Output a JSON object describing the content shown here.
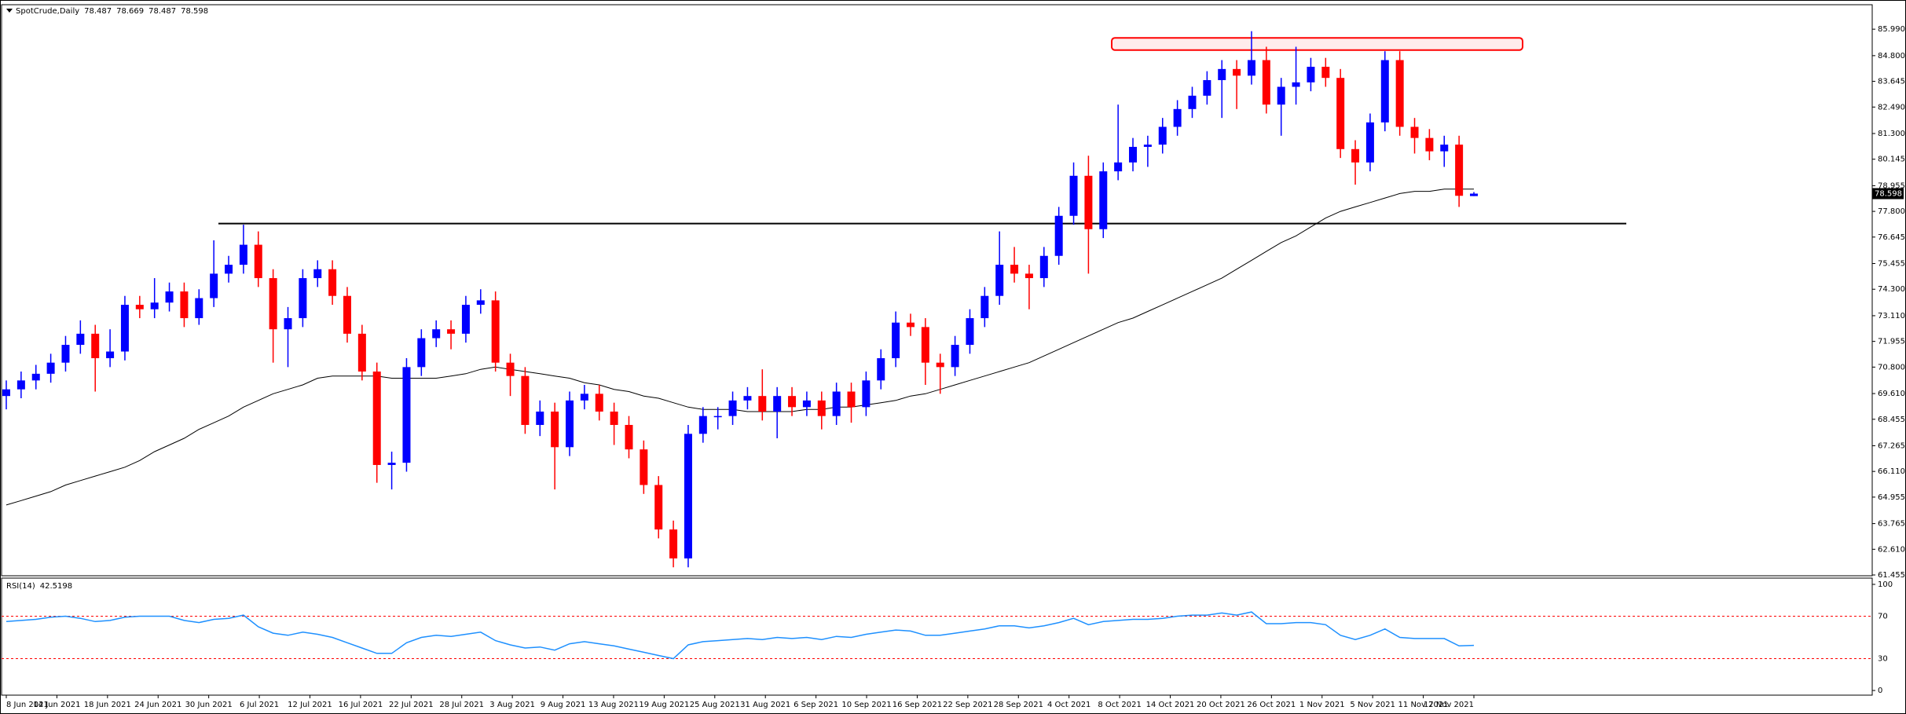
{
  "chart_data": {
    "type": "candlestick",
    "title": "SpotCrude,Daily",
    "date_labels": [
      "8 Jun 2021",
      "14 Jun 2021",
      "18 Jun 2021",
      "24 Jun 2021",
      "30 Jun 2021",
      "6 Jul 2021",
      "12 Jul 2021",
      "16 Jul 2021",
      "22 Jul 2021",
      "28 Jul 2021",
      "3 Aug 2021",
      "9 Aug 2021",
      "13 Aug 2021",
      "19 Aug 2021",
      "25 Aug 2021",
      "31 Aug 2021",
      "6 Sep 2021",
      "10 Sep 2021",
      "16 Sep 2021",
      "22 Sep 2021",
      "28 Sep 2021",
      "4 Oct 2021",
      "8 Oct 2021",
      "14 Oct 2021",
      "20 Oct 2021",
      "26 Oct 2021",
      "1 Nov 2021",
      "5 Nov 2021",
      "11 Nov 2021",
      "17 Nov 2021"
    ],
    "open": [
      69.5,
      69.8,
      70.2,
      70.5,
      71.0,
      71.8,
      72.3,
      71.2,
      71.5,
      73.6,
      73.4,
      73.7,
      74.2,
      73.0,
      73.9,
      75.0,
      75.4,
      76.3,
      74.8,
      72.5,
      73.0,
      74.8,
      75.2,
      74.0,
      72.3,
      70.6,
      66.4,
      66.5,
      70.8,
      72.1,
      72.5,
      72.3,
      73.6,
      73.8,
      71.0,
      70.4,
      68.2,
      68.8,
      67.2,
      69.3,
      69.6,
      68.8,
      68.2,
      67.1,
      65.5,
      63.5,
      62.2,
      67.8,
      68.6,
      68.6,
      69.3,
      69.5,
      68.8,
      69.5,
      69.0,
      69.3,
      68.6,
      69.7,
      69.0,
      70.2,
      71.2,
      72.8,
      72.6,
      71.0,
      70.8,
      71.8,
      73.0,
      74.0,
      75.4,
      75.0,
      74.8,
      75.8,
      77.6,
      79.4,
      77.0,
      79.6,
      80.0,
      80.7,
      80.8,
      81.6,
      82.4,
      83.0,
      83.7,
      84.2,
      83.9,
      84.6,
      82.6,
      83.4,
      83.6,
      84.3,
      83.8,
      80.6,
      80.0,
      81.8,
      84.6,
      81.6,
      81.1,
      80.5,
      80.8,
      78.487
    ],
    "high": [
      70.2,
      70.6,
      70.9,
      71.4,
      72.2,
      72.9,
      72.7,
      72.5,
      74.0,
      74.0,
      74.8,
      74.6,
      74.6,
      74.3,
      76.5,
      75.8,
      77.2,
      76.9,
      75.2,
      73.5,
      75.2,
      75.6,
      75.6,
      74.4,
      72.7,
      71.0,
      67.0,
      71.2,
      72.5,
      72.9,
      72.9,
      74.0,
      74.3,
      74.2,
      71.4,
      70.8,
      69.3,
      69.2,
      69.7,
      70.0,
      70.0,
      69.2,
      68.6,
      67.5,
      65.9,
      63.9,
      68.2,
      69.0,
      69.0,
      69.7,
      69.9,
      70.7,
      69.9,
      69.9,
      69.7,
      69.7,
      70.1,
      70.1,
      70.6,
      71.6,
      73.3,
      73.2,
      73.0,
      71.4,
      72.2,
      73.4,
      74.4,
      76.9,
      76.2,
      75.4,
      76.2,
      78.0,
      80.0,
      80.3,
      80.0,
      82.6,
      81.1,
      81.2,
      82.0,
      82.8,
      83.4,
      84.1,
      84.6,
      84.6,
      85.9,
      85.2,
      83.8,
      85.2,
      84.7,
      84.7,
      84.2,
      81.0,
      82.2,
      85.0,
      85.0,
      82.0,
      81.5,
      81.2,
      81.2,
      78.669
    ],
    "low": [
      68.9,
      69.4,
      69.8,
      70.1,
      70.6,
      71.4,
      69.7,
      70.8,
      71.1,
      73.0,
      73.0,
      73.3,
      72.6,
      72.7,
      73.5,
      74.6,
      75.0,
      74.4,
      71.0,
      70.8,
      72.6,
      74.4,
      73.6,
      71.9,
      70.2,
      65.6,
      65.3,
      66.1,
      70.4,
      71.7,
      71.6,
      71.9,
      73.2,
      70.6,
      69.5,
      67.8,
      67.7,
      65.3,
      66.8,
      68.9,
      68.4,
      67.3,
      66.7,
      65.1,
      63.1,
      61.8,
      61.8,
      67.4,
      68.0,
      68.2,
      68.9,
      68.4,
      67.6,
      68.6,
      68.6,
      68.0,
      68.2,
      68.3,
      68.6,
      69.8,
      70.8,
      72.2,
      70.0,
      69.6,
      70.4,
      71.4,
      72.6,
      73.6,
      74.6,
      73.4,
      74.4,
      75.4,
      77.2,
      75.0,
      76.6,
      79.2,
      79.6,
      79.8,
      80.4,
      81.2,
      82.0,
      82.6,
      82.0,
      82.4,
      83.5,
      82.2,
      81.2,
      82.6,
      83.2,
      83.4,
      80.2,
      79.0,
      79.6,
      81.4,
      81.2,
      80.4,
      80.1,
      79.8,
      78.0,
      78.487
    ],
    "close": [
      69.8,
      70.2,
      70.5,
      71.0,
      71.8,
      72.3,
      71.2,
      71.5,
      73.6,
      73.4,
      73.7,
      74.2,
      73.0,
      73.9,
      75.0,
      75.4,
      76.3,
      74.8,
      72.5,
      73.0,
      74.8,
      75.2,
      74.0,
      72.3,
      70.6,
      66.4,
      66.5,
      70.8,
      72.1,
      72.5,
      72.3,
      73.6,
      73.8,
      71.0,
      70.4,
      68.2,
      68.8,
      67.2,
      69.3,
      69.6,
      68.8,
      68.2,
      67.1,
      65.5,
      63.5,
      62.2,
      67.8,
      68.6,
      68.6,
      69.3,
      69.5,
      68.8,
      69.5,
      69.0,
      69.3,
      68.6,
      69.7,
      69.0,
      70.2,
      71.2,
      72.8,
      72.6,
      71.0,
      70.8,
      71.8,
      73.0,
      74.0,
      75.4,
      75.0,
      74.8,
      75.8,
      77.6,
      79.4,
      77.0,
      79.6,
      80.0,
      80.7,
      80.8,
      81.6,
      82.4,
      83.0,
      83.7,
      84.2,
      83.9,
      84.6,
      82.6,
      83.4,
      83.6,
      84.3,
      83.8,
      80.6,
      80.0,
      81.8,
      84.6,
      81.6,
      81.1,
      80.5,
      80.8,
      78.5,
      78.598
    ],
    "up_color": "#0000ff",
    "down_color": "#ff0000",
    "ma": {
      "color": "#000000",
      "values": [
        64.6,
        64.8,
        65.0,
        65.2,
        65.5,
        65.7,
        65.9,
        66.1,
        66.3,
        66.6,
        67.0,
        67.3,
        67.6,
        68.0,
        68.3,
        68.6,
        69.0,
        69.3,
        69.6,
        69.8,
        70.0,
        70.3,
        70.4,
        70.4,
        70.4,
        70.4,
        70.3,
        70.3,
        70.3,
        70.3,
        70.4,
        70.5,
        70.7,
        70.8,
        70.7,
        70.6,
        70.5,
        70.4,
        70.3,
        70.1,
        70.0,
        69.8,
        69.7,
        69.5,
        69.4,
        69.2,
        69.0,
        68.9,
        68.9,
        68.9,
        68.8,
        68.8,
        68.8,
        68.8,
        68.9,
        68.9,
        69.0,
        69.0,
        69.1,
        69.2,
        69.3,
        69.5,
        69.6,
        69.8,
        70.0,
        70.2,
        70.4,
        70.6,
        70.8,
        71.0,
        71.3,
        71.6,
        71.9,
        72.2,
        72.5,
        72.8,
        73.0,
        73.3,
        73.6,
        73.9,
        74.2,
        74.5,
        74.8,
        75.2,
        75.6,
        76.0,
        76.4,
        76.7,
        77.1,
        77.5,
        77.8,
        78.0,
        78.2,
        78.4,
        78.6,
        78.7,
        78.7,
        78.8,
        78.8,
        78.8
      ]
    },
    "ylim": [
      61.42,
      87.09
    ],
    "yticks": [
      {
        "value": 85.99,
        "label": "85.990"
      },
      {
        "value": 84.8,
        "label": "84.800"
      },
      {
        "value": 83.645,
        "label": "83.645"
      },
      {
        "value": 82.49,
        "label": "82.490"
      },
      {
        "value": 81.3,
        "label": "81.300"
      },
      {
        "value": 80.145,
        "label": "80.145"
      },
      {
        "value": 78.955,
        "label": "78.955"
      },
      {
        "value": 77.8,
        "label": "77.800"
      },
      {
        "value": 76.645,
        "label": "76.645"
      },
      {
        "value": 75.455,
        "label": "75.455"
      },
      {
        "value": 74.3,
        "label": "74.300"
      },
      {
        "value": 73.11,
        "label": "73.110"
      },
      {
        "value": 71.955,
        "label": "71.955"
      },
      {
        "value": 70.8,
        "label": "70.800"
      },
      {
        "value": 69.61,
        "label": "69.610"
      },
      {
        "value": 68.455,
        "label": "68.455"
      },
      {
        "value": 67.265,
        "label": "67.265"
      },
      {
        "value": 66.11,
        "label": "66.110"
      },
      {
        "value": 64.955,
        "label": "64.955"
      },
      {
        "value": 63.765,
        "label": "63.765"
      },
      {
        "value": 62.61,
        "label": "62.610"
      },
      {
        "value": 61.455,
        "label": "61.455"
      }
    ],
    "support_level": 77.25,
    "resistance_zone": [
      85.05,
      85.6
    ],
    "rsi": {
      "title": "RSI(14)",
      "color": "#1e90ff",
      "level_color": "#ff0000",
      "ylim": [
        -4.4,
        105.9
      ],
      "yticks": [
        100,
        70,
        30,
        0
      ],
      "values": [
        65,
        66,
        67,
        69,
        70,
        68,
        65,
        66,
        69,
        70,
        70,
        70,
        66,
        64,
        67,
        68,
        71,
        60,
        54,
        52,
        55,
        53,
        50,
        45,
        40,
        35,
        35,
        45,
        50,
        52,
        51,
        53,
        55,
        47,
        43,
        40,
        41,
        38,
        44,
        46,
        44,
        42,
        39,
        36,
        33,
        30,
        43,
        46,
        47,
        48,
        49,
        48,
        50,
        49,
        50,
        48,
        51,
        50,
        53,
        55,
        57,
        56,
        52,
        52,
        54,
        56,
        58,
        61,
        61,
        59,
        61,
        64,
        68,
        62,
        65,
        66,
        67,
        67,
        68,
        70,
        71,
        71,
        73,
        71,
        74,
        63,
        63,
        64,
        64,
        62,
        52,
        48,
        52,
        58,
        50,
        49,
        49,
        49,
        42,
        42.5198
      ]
    }
  }
}
